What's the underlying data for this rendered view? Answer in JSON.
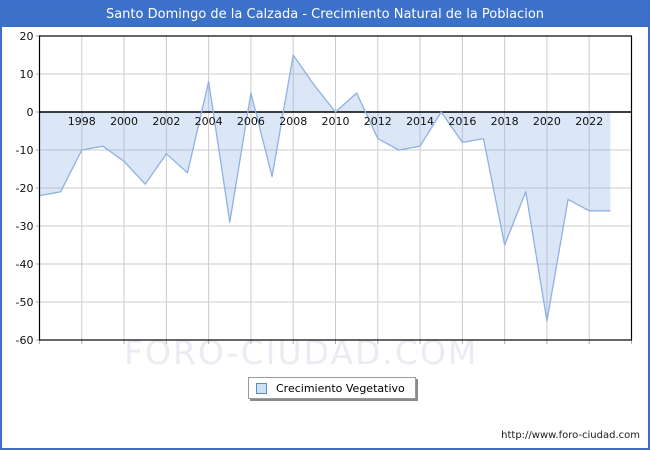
{
  "header": {
    "title": "Santo Domingo de la Calzada - Crecimiento Natural de la Poblacion"
  },
  "chart_data": {
    "type": "area",
    "title": "Santo Domingo de la Calzada - Crecimiento Natural de la Poblacion",
    "series_name": "Crecimiento Vegetativo",
    "x": [
      1996,
      1997,
      1998,
      1999,
      2000,
      2001,
      2002,
      2003,
      2004,
      2005,
      2006,
      2007,
      2008,
      2009,
      2010,
      2011,
      2012,
      2013,
      2014,
      2015,
      2016,
      2017,
      2018,
      2019,
      2020,
      2021,
      2022,
      2023
    ],
    "values": [
      -22,
      -21,
      -10,
      -9,
      -13,
      -19,
      -11,
      -16,
      8,
      -29,
      5,
      -17,
      15,
      7,
      0,
      5,
      -7,
      -10,
      -9,
      0,
      -8,
      -7,
      -35,
      -21,
      -55,
      -23,
      -26,
      -26
    ],
    "xlabel": "",
    "ylabel": "",
    "xlim": [
      1996,
      2024
    ],
    "ylim": [
      -60,
      20
    ],
    "xticks": [
      1998,
      2000,
      2002,
      2004,
      2006,
      2008,
      2010,
      2012,
      2014,
      2016,
      2018,
      2020,
      2022
    ],
    "yticks": [
      20,
      10,
      0,
      -10,
      -20,
      -30,
      -40,
      -50,
      -60
    ],
    "grid": true,
    "baseline": 0,
    "legend_position": "bottom-center",
    "colors": {
      "line": "#8fb1e3",
      "fill": "rgba(143,177,227,0.32)",
      "grid": "#cbcbcb",
      "frame": "#000000",
      "tick": "#b0b0b0",
      "label": "#111111",
      "header_bg": "#3b71c8",
      "border": "#3a70cc",
      "watermark": "#ebebf3"
    }
  },
  "legend": {
    "label": "Crecimiento Vegetativo"
  },
  "watermark": {
    "text": "FORO-CIUDAD.COM"
  },
  "footer": {
    "url": "http://www.foro-ciudad.com"
  }
}
